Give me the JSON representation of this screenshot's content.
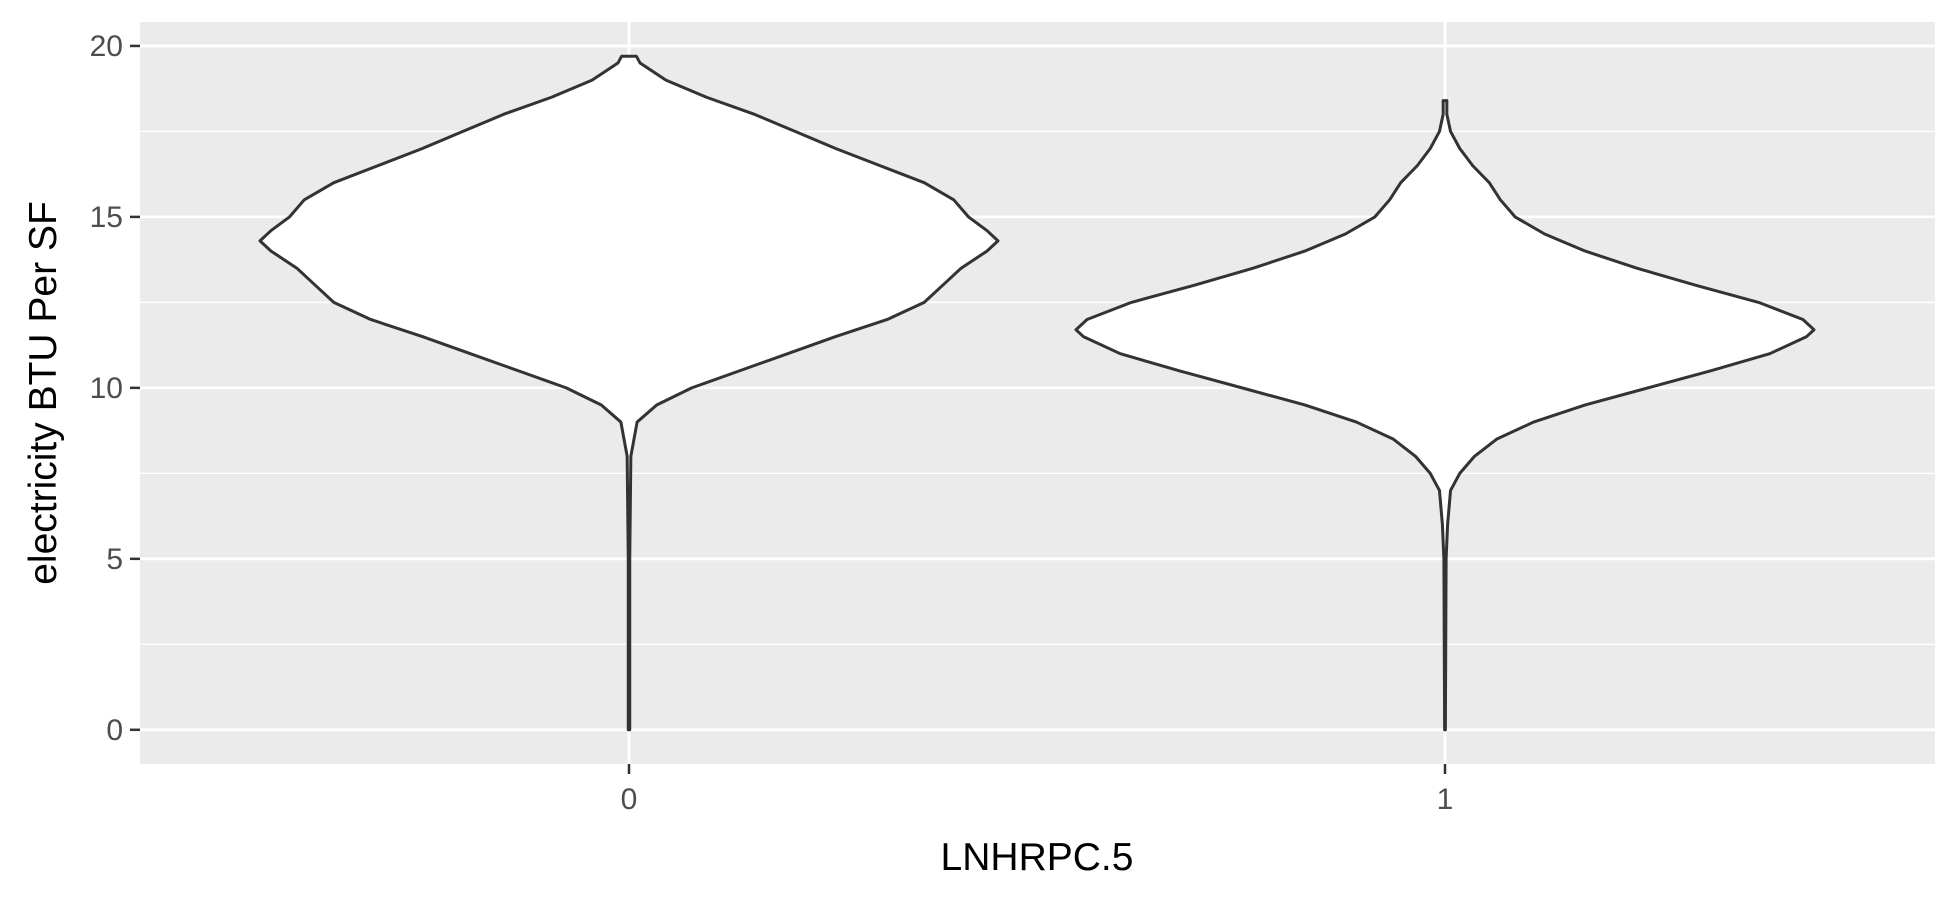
{
  "chart_data": {
    "type": "violin",
    "title": "",
    "xlabel": "LNHRPC.5",
    "ylabel": "electricity BTU Per SF",
    "categories": [
      "0",
      "1"
    ],
    "ylim": [
      -1,
      20.7
    ],
    "yticks": [
      0,
      5,
      10,
      15,
      20
    ],
    "grid": true,
    "legend": "none",
    "colors": {
      "panel_background": "#ebebeb",
      "grid_line": "#ffffff",
      "violin_fill": "#ffffff",
      "violin_outline": "#333333",
      "tick_label": "#4d4d4d",
      "axis_title": "#000000"
    },
    "series": [
      {
        "category": "0",
        "range": [
          0,
          19.7
        ],
        "density": [
          [
            0.0,
            0.002
          ],
          [
            5.0,
            0.002
          ],
          [
            8.0,
            0.005
          ],
          [
            9.0,
            0.022
          ],
          [
            9.5,
            0.075
          ],
          [
            10.0,
            0.17
          ],
          [
            10.5,
            0.3
          ],
          [
            11.0,
            0.43
          ],
          [
            11.5,
            0.56
          ],
          [
            12.0,
            0.7
          ],
          [
            12.5,
            0.8
          ],
          [
            13.0,
            0.85
          ],
          [
            13.5,
            0.9
          ],
          [
            14.0,
            0.97
          ],
          [
            14.3,
            1.0
          ],
          [
            14.6,
            0.97
          ],
          [
            15.0,
            0.92
          ],
          [
            15.5,
            0.88
          ],
          [
            16.0,
            0.8
          ],
          [
            16.5,
            0.68
          ],
          [
            17.0,
            0.56
          ],
          [
            17.5,
            0.45
          ],
          [
            18.0,
            0.34
          ],
          [
            18.5,
            0.21
          ],
          [
            19.0,
            0.1
          ],
          [
            19.5,
            0.03
          ],
          [
            19.7,
            0.02
          ]
        ]
      },
      {
        "category": "1",
        "range": [
          0,
          18.4
        ],
        "density": [
          [
            0.0,
            0.001
          ],
          [
            5.0,
            0.003
          ],
          [
            6.0,
            0.007
          ],
          [
            7.0,
            0.015
          ],
          [
            7.5,
            0.04
          ],
          [
            8.0,
            0.08
          ],
          [
            8.5,
            0.14
          ],
          [
            9.0,
            0.24
          ],
          [
            9.5,
            0.38
          ],
          [
            10.0,
            0.55
          ],
          [
            10.5,
            0.72
          ],
          [
            11.0,
            0.88
          ],
          [
            11.5,
            0.98
          ],
          [
            11.7,
            1.0
          ],
          [
            12.0,
            0.97
          ],
          [
            12.5,
            0.85
          ],
          [
            13.0,
            0.68
          ],
          [
            13.5,
            0.52
          ],
          [
            14.0,
            0.38
          ],
          [
            14.5,
            0.27
          ],
          [
            15.0,
            0.19
          ],
          [
            15.5,
            0.15
          ],
          [
            16.0,
            0.12
          ],
          [
            16.5,
            0.075
          ],
          [
            17.0,
            0.04
          ],
          [
            17.5,
            0.015
          ],
          [
            18.0,
            0.005
          ],
          [
            18.4,
            0.005
          ]
        ]
      }
    ]
  }
}
